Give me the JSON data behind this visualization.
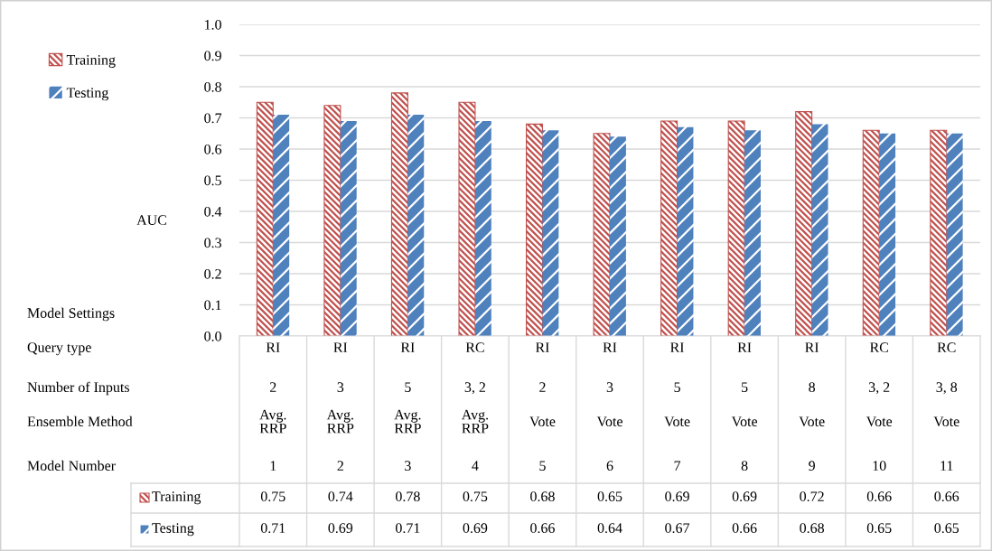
{
  "chart_data": {
    "type": "bar",
    "ylabel": "AUC",
    "categories": [
      "RI\n2\nAvg. RRP\n1",
      "RI\n3\nAvg. RRP\n2",
      "RI\n5\nAvg. RRP\n3",
      "RC\n3, 2\nAvg. RRP\n4",
      "RI\n2\nVote\n5",
      "RI\n3\nVote\n6",
      "RI\n5\nVote\n7",
      "RI\n5\nVote\n8",
      "RI\n8\nVote\n9",
      "RC\n3, 2\nVote\n10",
      "RC\n3, 8\nVote\n11"
    ],
    "series": [
      {
        "name": "Training",
        "color": "#c0504d",
        "values": [
          0.75,
          0.74,
          0.78,
          0.75,
          0.68,
          0.65,
          0.69,
          0.69,
          0.72,
          0.66,
          0.66
        ]
      },
      {
        "name": "Testing",
        "color": "#4f81bd",
        "values": [
          0.71,
          0.69,
          0.71,
          0.69,
          0.66,
          0.64,
          0.67,
          0.66,
          0.68,
          0.65,
          0.65
        ]
      }
    ],
    "annotations": [
      "Model Settings",
      "Query type",
      "Number of Inputs",
      "Ensemble Method",
      "Model Number"
    ],
    "ylim": [
      0,
      1
    ],
    "yticks": [
      {
        "value": 0,
        "label": "0.0"
      },
      {
        "value": 0.1,
        "label": "0.1"
      },
      {
        "value": 0.2,
        "label": "0.2"
      },
      {
        "value": 0.3,
        "label": "0.3"
      },
      {
        "value": 0.4,
        "label": "0.4"
      },
      {
        "value": 0.5,
        "label": "0.5"
      },
      {
        "value": 0.6,
        "label": "0.6"
      },
      {
        "value": 0.7,
        "label": "0.7"
      },
      {
        "value": 0.8,
        "label": "0.8"
      },
      {
        "value": 0.9,
        "label": "0.9"
      },
      {
        "value": 1,
        "label": "1.0"
      }
    ],
    "grid": "y",
    "legend": "top left",
    "data_labels": true
  }
}
